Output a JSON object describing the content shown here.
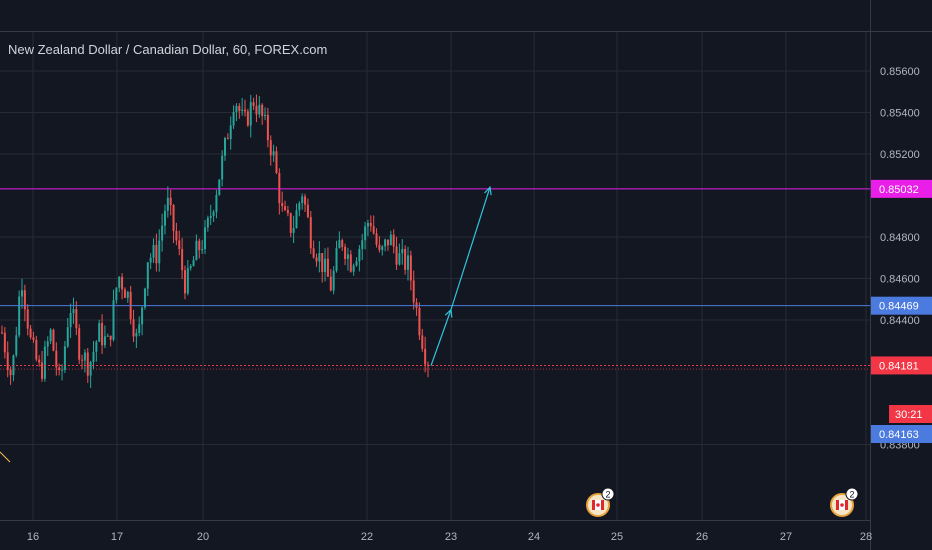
{
  "header": {
    "title": "New Zealand Dollar / Canadian Dollar, 60, FOREX.com"
  },
  "colors": {
    "background": "#131722",
    "grid": "#262b36",
    "text": "#b2b5be",
    "up": "#26a69a",
    "down": "#ef5350",
    "magenta": "#e91ee9",
    "blue": "#4c7be0",
    "red_tag": "#f23645",
    "arrow": "#2fc5e0"
  },
  "chart_data": {
    "type": "candlestick",
    "symbol": "NZDCAD",
    "interval": "60",
    "ylim": [
      0.8372,
      0.8572
    ],
    "y_ticks": [
      "0.85600",
      "0.85400",
      "0.85200",
      "0.84800",
      "0.84600",
      "0.84400",
      "0.83800"
    ],
    "x_ticks": [
      "16",
      "17",
      "20",
      "22",
      "23",
      "24",
      "25",
      "26",
      "27",
      "28"
    ],
    "candles_trace": [
      0.8434,
      0.8412,
      0.8462,
      0.8428,
      0.8414,
      0.8434,
      0.8408,
      0.8448,
      0.8426,
      0.8418,
      0.8434,
      0.8428,
      0.8462,
      0.8452,
      0.8428,
      0.847,
      0.8472,
      0.8498,
      0.8478,
      0.8456,
      0.8472,
      0.848,
      0.85,
      0.8522,
      0.8548,
      0.8534,
      0.8546,
      0.8536,
      0.852,
      0.849,
      0.8484,
      0.8502,
      0.8478,
      0.8468,
      0.8456,
      0.848,
      0.8468,
      0.8476,
      0.849,
      0.847,
      0.848,
      0.847,
      0.8466,
      0.844,
      0.8418
    ],
    "horizontal_levels": [
      {
        "price": 0.85032,
        "label": "0.85032",
        "color": "#e91ee9"
      },
      {
        "price": 0.84469,
        "label": "0.84469",
        "color": "#4c7be0"
      },
      {
        "price": 0.84181,
        "label": "0.84181",
        "color": "#f23645"
      }
    ],
    "price_tags": {
      "magenta": "0.85032",
      "blue": "0.84469",
      "last": "0.84181",
      "countdown": "30:21",
      "blue_low": "0.84163"
    },
    "projection_arrows": [
      {
        "from": [
          "Oct 22 23:00",
          0.8418
        ],
        "to": [
          "Oct 23",
          0.8445
        ]
      },
      {
        "from": [
          "Oct 23",
          0.8445
        ],
        "to": [
          "Oct 23 12:00",
          0.8504
        ]
      }
    ],
    "events": [
      {
        "icon": "canada-flag-icon",
        "count": "2"
      },
      {
        "icon": "canada-flag-icon",
        "count": "2"
      }
    ]
  }
}
